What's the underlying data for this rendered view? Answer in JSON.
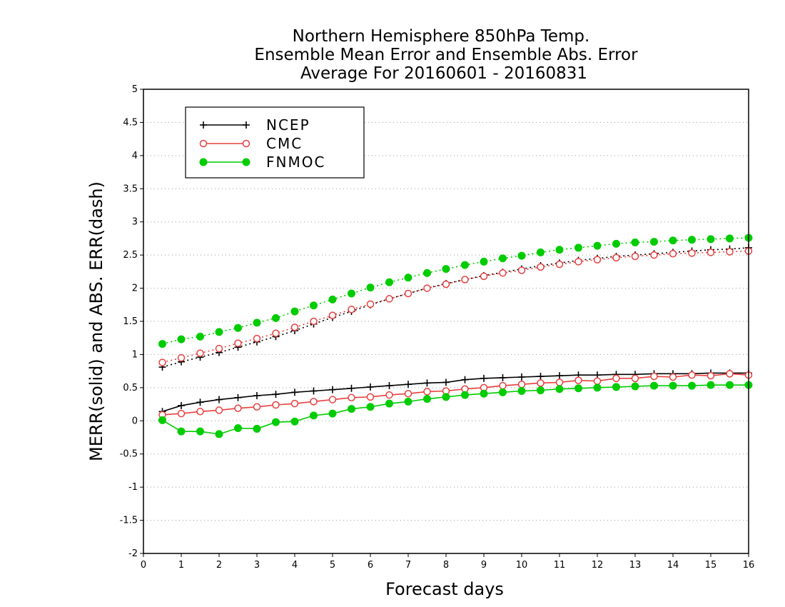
{
  "chart_data": {
    "type": "line",
    "title_lines": [
      "Northern Hemisphere 850hPa Temp.",
      "Ensemble Mean Error and Ensemble Abs. Error",
      "Average For 20160601 - 20160831"
    ],
    "xlabel": "Forecast days",
    "ylabel": "MERR(solid) and ABS. ERR(dash)",
    "xlim": [
      0,
      16
    ],
    "ylim": [
      -2,
      5
    ],
    "x_ticks": [
      "0",
      "1",
      "2",
      "3",
      "4",
      "5",
      "6",
      "7",
      "8",
      "9",
      "10",
      "11",
      "12",
      "13",
      "14",
      "15",
      "16"
    ],
    "y_ticks": [
      "-2",
      "-1.5",
      "-1",
      "-0.5",
      "0",
      "0.5",
      "1",
      "1.5",
      "2",
      "2.5",
      "3",
      "3.5",
      "4",
      "4.5",
      "5"
    ],
    "grid": "horizontal dotted",
    "legend_position": "top-left",
    "x": [
      0.5,
      1,
      1.5,
      2,
      2.5,
      3,
      3.5,
      4,
      4.5,
      5,
      5.5,
      6,
      6.5,
      7,
      7.5,
      8,
      8.5,
      9,
      9.5,
      10,
      10.5,
      11,
      11.5,
      12,
      12.5,
      13,
      13.5,
      14,
      14.5,
      15,
      15.5,
      16
    ],
    "series": [
      {
        "name": "NCEP",
        "color": "#000000",
        "marker": "plus",
        "merr": [
          0.14,
          0.23,
          0.28,
          0.32,
          0.35,
          0.38,
          0.4,
          0.43,
          0.45,
          0.47,
          0.49,
          0.51,
          0.53,
          0.55,
          0.57,
          0.58,
          0.62,
          0.64,
          0.65,
          0.66,
          0.67,
          0.68,
          0.69,
          0.69,
          0.7,
          0.7,
          0.71,
          0.71,
          0.71,
          0.72,
          0.72,
          0.72
        ],
        "abs_err": [
          0.81,
          0.89,
          0.96,
          1.03,
          1.11,
          1.19,
          1.27,
          1.36,
          1.46,
          1.56,
          1.65,
          1.75,
          1.84,
          1.92,
          2.0,
          2.07,
          2.13,
          2.19,
          2.24,
          2.29,
          2.34,
          2.38,
          2.42,
          2.45,
          2.48,
          2.5,
          2.52,
          2.54,
          2.56,
          2.58,
          2.59,
          2.61
        ]
      },
      {
        "name": "CMC",
        "color": "#e84040",
        "marker": "open-circle",
        "merr": [
          0.09,
          0.11,
          0.14,
          0.16,
          0.19,
          0.21,
          0.24,
          0.26,
          0.29,
          0.32,
          0.35,
          0.36,
          0.39,
          0.41,
          0.44,
          0.45,
          0.48,
          0.5,
          0.53,
          0.55,
          0.57,
          0.58,
          0.61,
          0.6,
          0.64,
          0.64,
          0.67,
          0.66,
          0.69,
          0.68,
          0.71,
          0.69
        ],
        "abs_err": [
          0.88,
          0.95,
          1.02,
          1.09,
          1.17,
          1.24,
          1.32,
          1.41,
          1.5,
          1.59,
          1.68,
          1.76,
          1.84,
          1.92,
          2.0,
          2.06,
          2.13,
          2.18,
          2.23,
          2.27,
          2.32,
          2.36,
          2.4,
          2.43,
          2.46,
          2.48,
          2.5,
          2.52,
          2.53,
          2.54,
          2.55,
          2.56
        ]
      },
      {
        "name": "FNMOC",
        "color": "#00cc00",
        "marker": "filled-circle",
        "merr": [
          0.01,
          -0.16,
          -0.16,
          -0.2,
          -0.11,
          -0.12,
          -0.02,
          -0.01,
          0.08,
          0.11,
          0.18,
          0.21,
          0.26,
          0.29,
          0.33,
          0.36,
          0.39,
          0.41,
          0.43,
          0.45,
          0.46,
          0.48,
          0.49,
          0.5,
          0.51,
          0.52,
          0.53,
          0.53,
          0.53,
          0.54,
          0.54,
          0.54
        ],
        "abs_err": [
          1.16,
          1.23,
          1.27,
          1.34,
          1.4,
          1.48,
          1.55,
          1.65,
          1.74,
          1.83,
          1.92,
          2.01,
          2.09,
          2.16,
          2.23,
          2.29,
          2.35,
          2.4,
          2.45,
          2.49,
          2.54,
          2.58,
          2.61,
          2.64,
          2.67,
          2.69,
          2.7,
          2.72,
          2.73,
          2.74,
          2.75,
          2.76
        ]
      }
    ]
  }
}
